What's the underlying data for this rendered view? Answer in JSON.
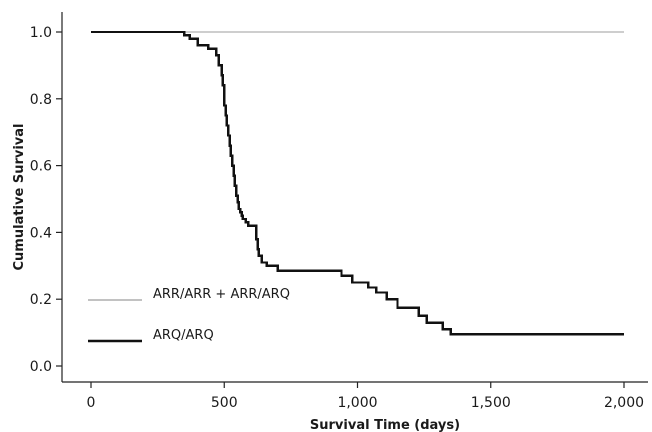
{
  "chart_data": {
    "type": "line",
    "subtype": "step",
    "title": "",
    "xlabel": "Survival Time (days)",
    "ylabel": "Cumulative Survival",
    "xlim": [
      0,
      2000
    ],
    "ylim": [
      0,
      1
    ],
    "x_ticks": [
      0,
      500,
      1000,
      1500,
      2000
    ],
    "x_tick_labels": [
      "0",
      "500",
      "1,000",
      "1,500",
      "2,000"
    ],
    "y_ticks": [
      0.0,
      0.2,
      0.4,
      0.6,
      0.8,
      1.0
    ],
    "y_tick_labels": [
      "0.0",
      "0.2",
      "0.4",
      "0.6",
      "0.8",
      "1.0"
    ],
    "grid": false,
    "legend_position": "lower-left",
    "series": [
      {
        "name": "ARR/ARR + ARR/ARQ",
        "color": "#9e9e9e",
        "style": "thin",
        "x": [
          0,
          2000
        ],
        "y": [
          1.0,
          1.0
        ]
      },
      {
        "name": "ARQ/ARQ",
        "color": "#111111",
        "style": "thick",
        "x": [
          0,
          350,
          370,
          400,
          440,
          470,
          480,
          490,
          495,
          500,
          505,
          510,
          515,
          520,
          525,
          530,
          535,
          540,
          545,
          550,
          555,
          560,
          565,
          570,
          580,
          590,
          600,
          620,
          625,
          630,
          640,
          660,
          700,
          940,
          980,
          1040,
          1070,
          1110,
          1150,
          1230,
          1260,
          1320,
          1350,
          2000
        ],
        "y": [
          1.0,
          0.99,
          0.98,
          0.96,
          0.95,
          0.93,
          0.9,
          0.87,
          0.84,
          0.78,
          0.75,
          0.72,
          0.69,
          0.66,
          0.63,
          0.6,
          0.57,
          0.54,
          0.51,
          0.49,
          0.47,
          0.46,
          0.45,
          0.44,
          0.43,
          0.42,
          0.42,
          0.38,
          0.35,
          0.33,
          0.31,
          0.3,
          0.285,
          0.27,
          0.25,
          0.235,
          0.22,
          0.2,
          0.175,
          0.15,
          0.13,
          0.11,
          0.095,
          0.095
        ]
      }
    ]
  }
}
